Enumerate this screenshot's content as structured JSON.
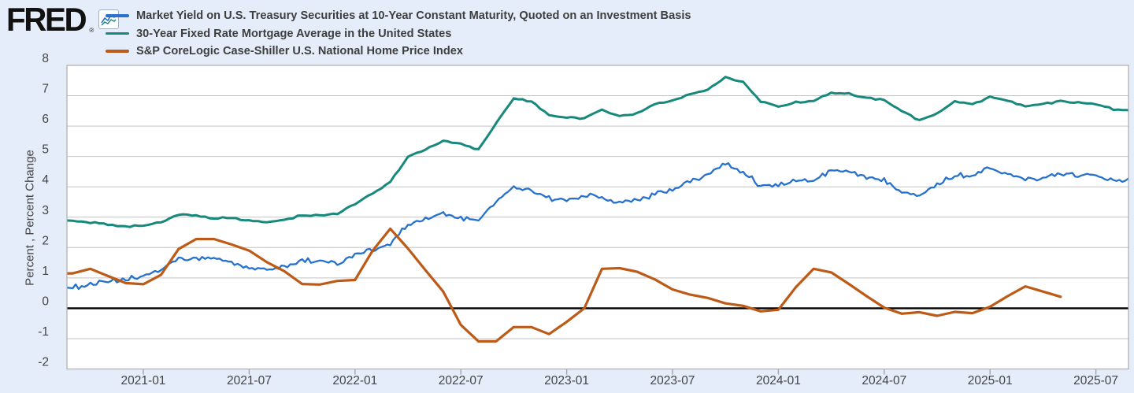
{
  "header": {
    "logo_text": "FRED",
    "registered_mark": "®",
    "logo_icon": "fred-sparkline-icon"
  },
  "legend": {
    "position": "top-left",
    "items": [
      {
        "label": "Market Yield on U.S. Treasury Securities at 10-Year Constant Maturity, Quoted on an Investment Basis",
        "color": "#2571cd"
      },
      {
        "label": "30-Year Fixed Rate Mortgage Average in the United States",
        "color": "#17897c"
      },
      {
        "label": "S&P CoreLogic Case-Shiller U.S. National Home Price Index",
        "color": "#bd5a17"
      }
    ]
  },
  "y_axis": {
    "title": "Percent , Percent Change",
    "ticks": [
      8,
      7,
      6,
      5,
      4,
      3,
      2,
      1,
      0,
      -1,
      -2
    ]
  },
  "x_axis": {
    "tick_labels": [
      "2021-01",
      "2021-07",
      "2022-01",
      "2022-07",
      "2023-01",
      "2023-07",
      "2024-01",
      "2024-07",
      "2025-01",
      "2025-07"
    ],
    "tick_month_index": [
      4,
      10,
      16,
      22,
      28,
      34,
      40,
      46,
      52,
      58
    ]
  },
  "chart_data": {
    "type": "line",
    "title": "",
    "xlabel": "",
    "ylabel": "Percent , Percent Change",
    "ylim": [
      -2,
      8
    ],
    "grid": true,
    "zero_line": true,
    "legend_position": "top-left",
    "background_color": "#e4edf9",
    "plot_background_color": "#ffffff",
    "x_unit": "month",
    "x_start_month": "2020-09",
    "x_window": [
      "2020-08-21",
      "2025-08-29"
    ],
    "series": [
      {
        "id": "treasury-10y",
        "name": "Market Yield on U.S. Treasury Securities at 10-Year Constant Maturity, Quoted on an Investment Basis",
        "color": "#2571cd",
        "frequency": "daily",
        "jitter": 0.055,
        "values": [
          0.68,
          0.79,
          0.87,
          0.93,
          1.08,
          1.26,
          1.61,
          1.64,
          1.62,
          1.52,
          1.32,
          1.28,
          1.37,
          1.58,
          1.56,
          1.47,
          1.76,
          1.93,
          2.13,
          2.75,
          2.9,
          3.14,
          2.95,
          2.9,
          3.52,
          3.98,
          3.89,
          3.62,
          3.53,
          3.75,
          3.66,
          3.46,
          3.57,
          3.75,
          3.9,
          4.17,
          4.38,
          4.8,
          4.5,
          4.02,
          4.06,
          4.21,
          4.21,
          4.54,
          4.48,
          4.31,
          4.25,
          3.87,
          3.72,
          4.1,
          4.36,
          4.39,
          4.63,
          4.45,
          4.28,
          4.28,
          4.42,
          4.38,
          4.39,
          4.26,
          4.2
        ]
      },
      {
        "id": "mortgage-30y",
        "name": "30-Year Fixed Rate Mortgage Average in the United States",
        "color": "#17897c",
        "frequency": "weekly",
        "jitter": 0.02,
        "values": [
          2.89,
          2.83,
          2.77,
          2.68,
          2.74,
          2.81,
          3.08,
          3.06,
          2.96,
          2.98,
          2.87,
          2.84,
          2.9,
          3.07,
          3.07,
          3.1,
          3.45,
          3.76,
          4.17,
          4.98,
          5.23,
          5.52,
          5.41,
          5.22,
          6.11,
          6.9,
          6.81,
          6.36,
          6.27,
          6.26,
          6.54,
          6.34,
          6.43,
          6.71,
          6.84,
          7.07,
          7.2,
          7.62,
          7.44,
          6.82,
          6.64,
          6.78,
          6.82,
          7.1,
          7.06,
          6.92,
          6.85,
          6.5,
          6.18,
          6.43,
          6.81,
          6.72,
          6.96,
          6.84,
          6.65,
          6.73,
          6.82,
          6.77,
          6.72,
          6.56,
          6.5
        ]
      },
      {
        "id": "case-shiller-hpi",
        "name": "S&P CoreLogic Case-Shiller U.S. National Home Price Index",
        "color": "#bd5a17",
        "frequency": "monthly",
        "jitter": 0,
        "values": [
          1.15,
          1.3,
          1.06,
          0.83,
          0.79,
          1.1,
          1.95,
          2.28,
          2.28,
          2.1,
          1.9,
          1.52,
          1.22,
          0.8,
          0.78,
          0.9,
          0.93,
          1.9,
          2.62,
          1.97,
          1.25,
          0.55,
          -0.55,
          -1.09,
          -1.09,
          -0.62,
          -0.62,
          -0.85,
          -0.45,
          0.0,
          1.3,
          1.32,
          1.2,
          0.95,
          0.62,
          0.45,
          0.34,
          0.16,
          0.08,
          -0.1,
          -0.05,
          0.7,
          1.3,
          1.18,
          0.8,
          0.4,
          0.02,
          -0.18,
          -0.13,
          -0.25,
          -0.12,
          -0.16,
          0.05,
          0.4,
          0.72,
          0.55,
          0.38
        ]
      }
    ]
  }
}
